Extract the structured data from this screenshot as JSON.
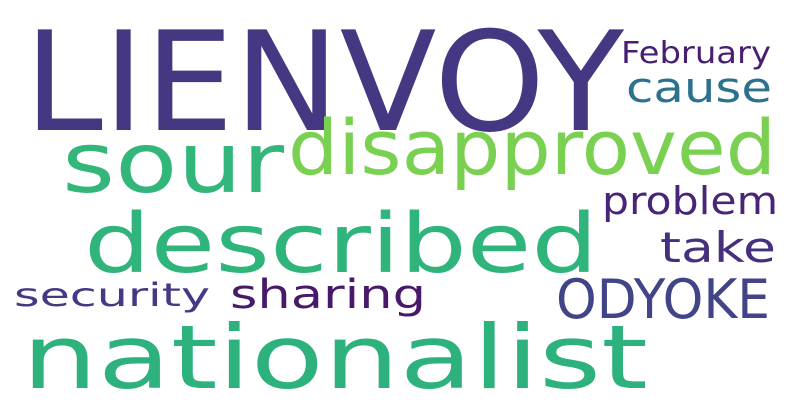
{
  "wordcloud": {
    "words": [
      {
        "text": "LIENVOY",
        "color": "#453781"
      },
      {
        "text": "sour",
        "color": "#32b67a"
      },
      {
        "text": "disapproved",
        "color": "#7ad151"
      },
      {
        "text": "described",
        "color": "#2fb47c"
      },
      {
        "text": "nationalist",
        "color": "#2db27d"
      },
      {
        "text": "February",
        "color": "#481f70"
      },
      {
        "text": "cause",
        "color": "#2c728e"
      },
      {
        "text": "problem",
        "color": "#482576"
      },
      {
        "text": "take",
        "color": "#46307e"
      },
      {
        "text": "ODYOKE",
        "color": "#414487"
      },
      {
        "text": "sharing",
        "color": "#48186a"
      },
      {
        "text": "security",
        "color": "#443983"
      }
    ]
  }
}
